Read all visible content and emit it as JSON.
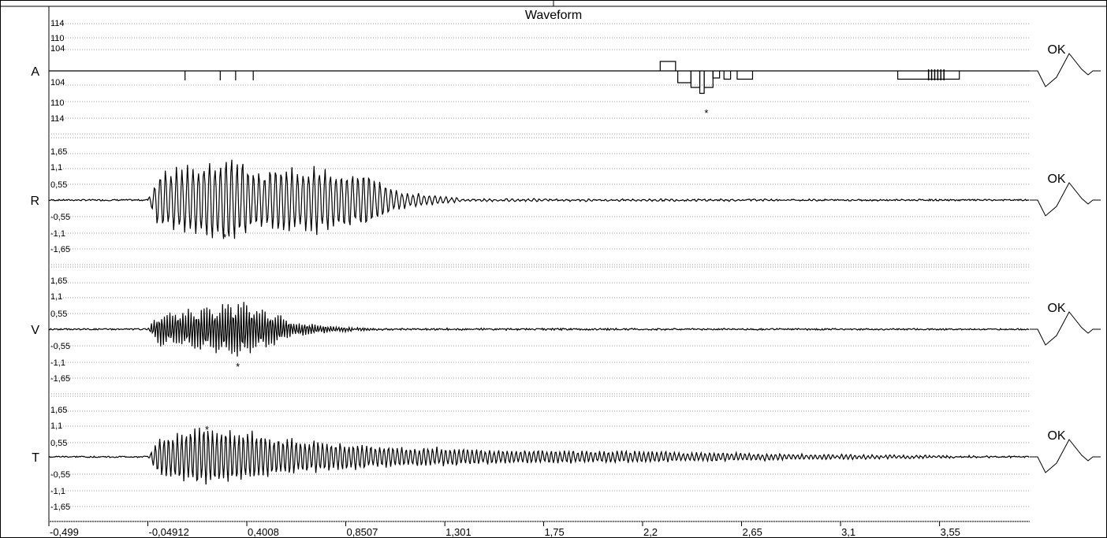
{
  "chart_data": {
    "type": "line",
    "title": "Waveform",
    "x_ticks": [
      "-0,499",
      "-0,04912",
      "0,4008",
      "0,8507",
      "1,301",
      "1,75",
      "2,2",
      "2,65",
      "3,1",
      "3,55"
    ],
    "x_tick_values": [
      -0.499,
      -0.04912,
      0.4008,
      0.8507,
      1.301,
      1.75,
      2.2,
      2.65,
      3.1,
      3.55
    ],
    "xlim": [
      -0.499,
      3.96
    ],
    "grid": true,
    "channels": [
      {
        "name": "A",
        "status": "OK",
        "y_ticks_upper": [
          "114",
          "110",
          "104"
        ],
        "y_ticks_lower": [
          "104",
          "110",
          "114"
        ],
        "peak_marker": "*",
        "peak_x": 2.49,
        "events": [
          {
            "x": 0.12,
            "level": -0.3
          },
          {
            "x": 0.28,
            "level": -0.3
          },
          {
            "x": 0.35,
            "level": -0.3
          },
          {
            "x": 0.43,
            "level": -0.3
          }
        ],
        "segments": [
          {
            "x0": 2.28,
            "x1": 2.35,
            "level": 0.4
          },
          {
            "x0": 2.36,
            "x1": 2.42,
            "level": -0.5
          },
          {
            "x0": 2.42,
            "x1": 2.46,
            "level": -0.7
          },
          {
            "x0": 2.46,
            "x1": 2.48,
            "level": -0.95
          },
          {
            "x0": 2.48,
            "x1": 2.52,
            "level": -0.7
          },
          {
            "x0": 2.52,
            "x1": 2.55,
            "level": -0.3
          },
          {
            "x0": 2.57,
            "x1": 2.6,
            "level": -0.35
          },
          {
            "x0": 2.63,
            "x1": 2.7,
            "level": -0.35
          },
          {
            "x0": 3.36,
            "x1": 3.64,
            "level": -0.35
          }
        ]
      },
      {
        "name": "R",
        "status": "OK",
        "y_ticks": [
          "1,65",
          "1,1",
          "0,55",
          "-0,55",
          "-1,1",
          "-1,65"
        ],
        "y_tick_values": [
          1.65,
          1.1,
          0.55,
          -0.55,
          -1.1,
          -1.65
        ],
        "peak_marker": "*",
        "peak_x": 0.3,
        "envelope": [
          {
            "x": -0.05,
            "amp": 0.0
          },
          {
            "x": 0.0,
            "amp": 0.5
          },
          {
            "x": 0.15,
            "amp": 0.65
          },
          {
            "x": 0.25,
            "amp": 0.75
          },
          {
            "x": 0.3,
            "amp": 0.85
          },
          {
            "x": 0.45,
            "amp": 0.55
          },
          {
            "x": 0.7,
            "amp": 0.6
          },
          {
            "x": 0.95,
            "amp": 0.45
          },
          {
            "x": 1.1,
            "amp": 0.15
          },
          {
            "x": 1.4,
            "amp": 0.02
          },
          {
            "x": 3.96,
            "amp": 0.0
          }
        ],
        "period": 0.025
      },
      {
        "name": "V",
        "status": "OK",
        "y_ticks": [
          "1,65",
          "1,1",
          "0,55",
          "-0,55",
          "-1,1",
          "-1,65"
        ],
        "y_tick_values": [
          1.65,
          1.1,
          0.55,
          -0.55,
          -1.1,
          -1.65
        ],
        "peak_marker": "*",
        "peak_x": 0.36,
        "envelope": [
          {
            "x": -0.05,
            "amp": 0.0
          },
          {
            "x": 0.0,
            "amp": 0.3
          },
          {
            "x": 0.2,
            "amp": 0.4
          },
          {
            "x": 0.36,
            "amp": 0.55
          },
          {
            "x": 0.5,
            "amp": 0.35
          },
          {
            "x": 0.6,
            "amp": 0.15
          },
          {
            "x": 0.8,
            "amp": 0.05
          },
          {
            "x": 1.0,
            "amp": 0.01
          },
          {
            "x": 3.96,
            "amp": 0.0
          }
        ],
        "period": 0.012
      },
      {
        "name": "T",
        "status": "OK",
        "y_ticks": [
          "1,65",
          "1,1",
          "0,55",
          "-0,55",
          "-1,1",
          "-1,65"
        ],
        "y_tick_values": [
          1.65,
          1.1,
          0.55,
          -0.55,
          -1.1,
          -1.65
        ],
        "peak_marker": "*",
        "peak_x": 0.22,
        "envelope": [
          {
            "x": -0.05,
            "amp": 0.0
          },
          {
            "x": 0.0,
            "amp": 0.35
          },
          {
            "x": 0.22,
            "amp": 0.55
          },
          {
            "x": 0.4,
            "amp": 0.45
          },
          {
            "x": 0.7,
            "amp": 0.3
          },
          {
            "x": 1.0,
            "amp": 0.2
          },
          {
            "x": 1.6,
            "amp": 0.12
          },
          {
            "x": 2.2,
            "amp": 0.1
          },
          {
            "x": 2.9,
            "amp": 0.05
          },
          {
            "x": 3.96,
            "amp": 0.0
          }
        ],
        "period": 0.02
      }
    ]
  }
}
